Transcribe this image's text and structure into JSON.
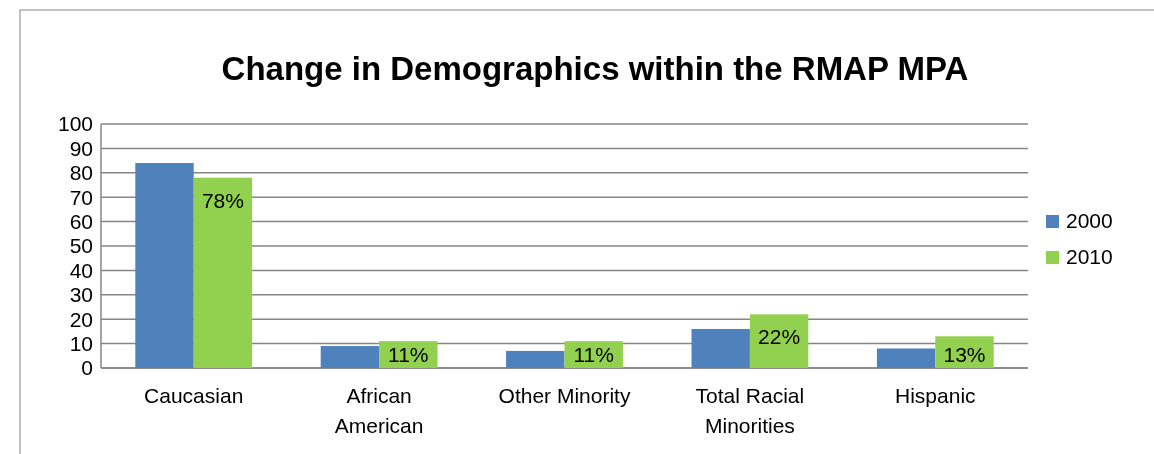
{
  "chart_data": {
    "type": "bar",
    "title": "Change in Demographics within the RMAP MPA",
    "categories": [
      "Caucasian",
      "African American",
      "Other Minority",
      "Total Racial Minorities",
      "Hispanic"
    ],
    "series": [
      {
        "name": "2000",
        "color": "#4f81bd",
        "values": [
          84,
          9,
          7,
          16,
          8
        ]
      },
      {
        "name": "2010",
        "color": "#92d050",
        "values": [
          78,
          11,
          11,
          22,
          13
        ],
        "value_labels": [
          "78%",
          "11%",
          "11%",
          "22%",
          "13%"
        ]
      }
    ],
    "ylim": [
      0,
      100
    ],
    "yticks": [
      0,
      10,
      20,
      30,
      40,
      50,
      60,
      70,
      80,
      90,
      100
    ],
    "grid": "y",
    "legend": "right"
  }
}
